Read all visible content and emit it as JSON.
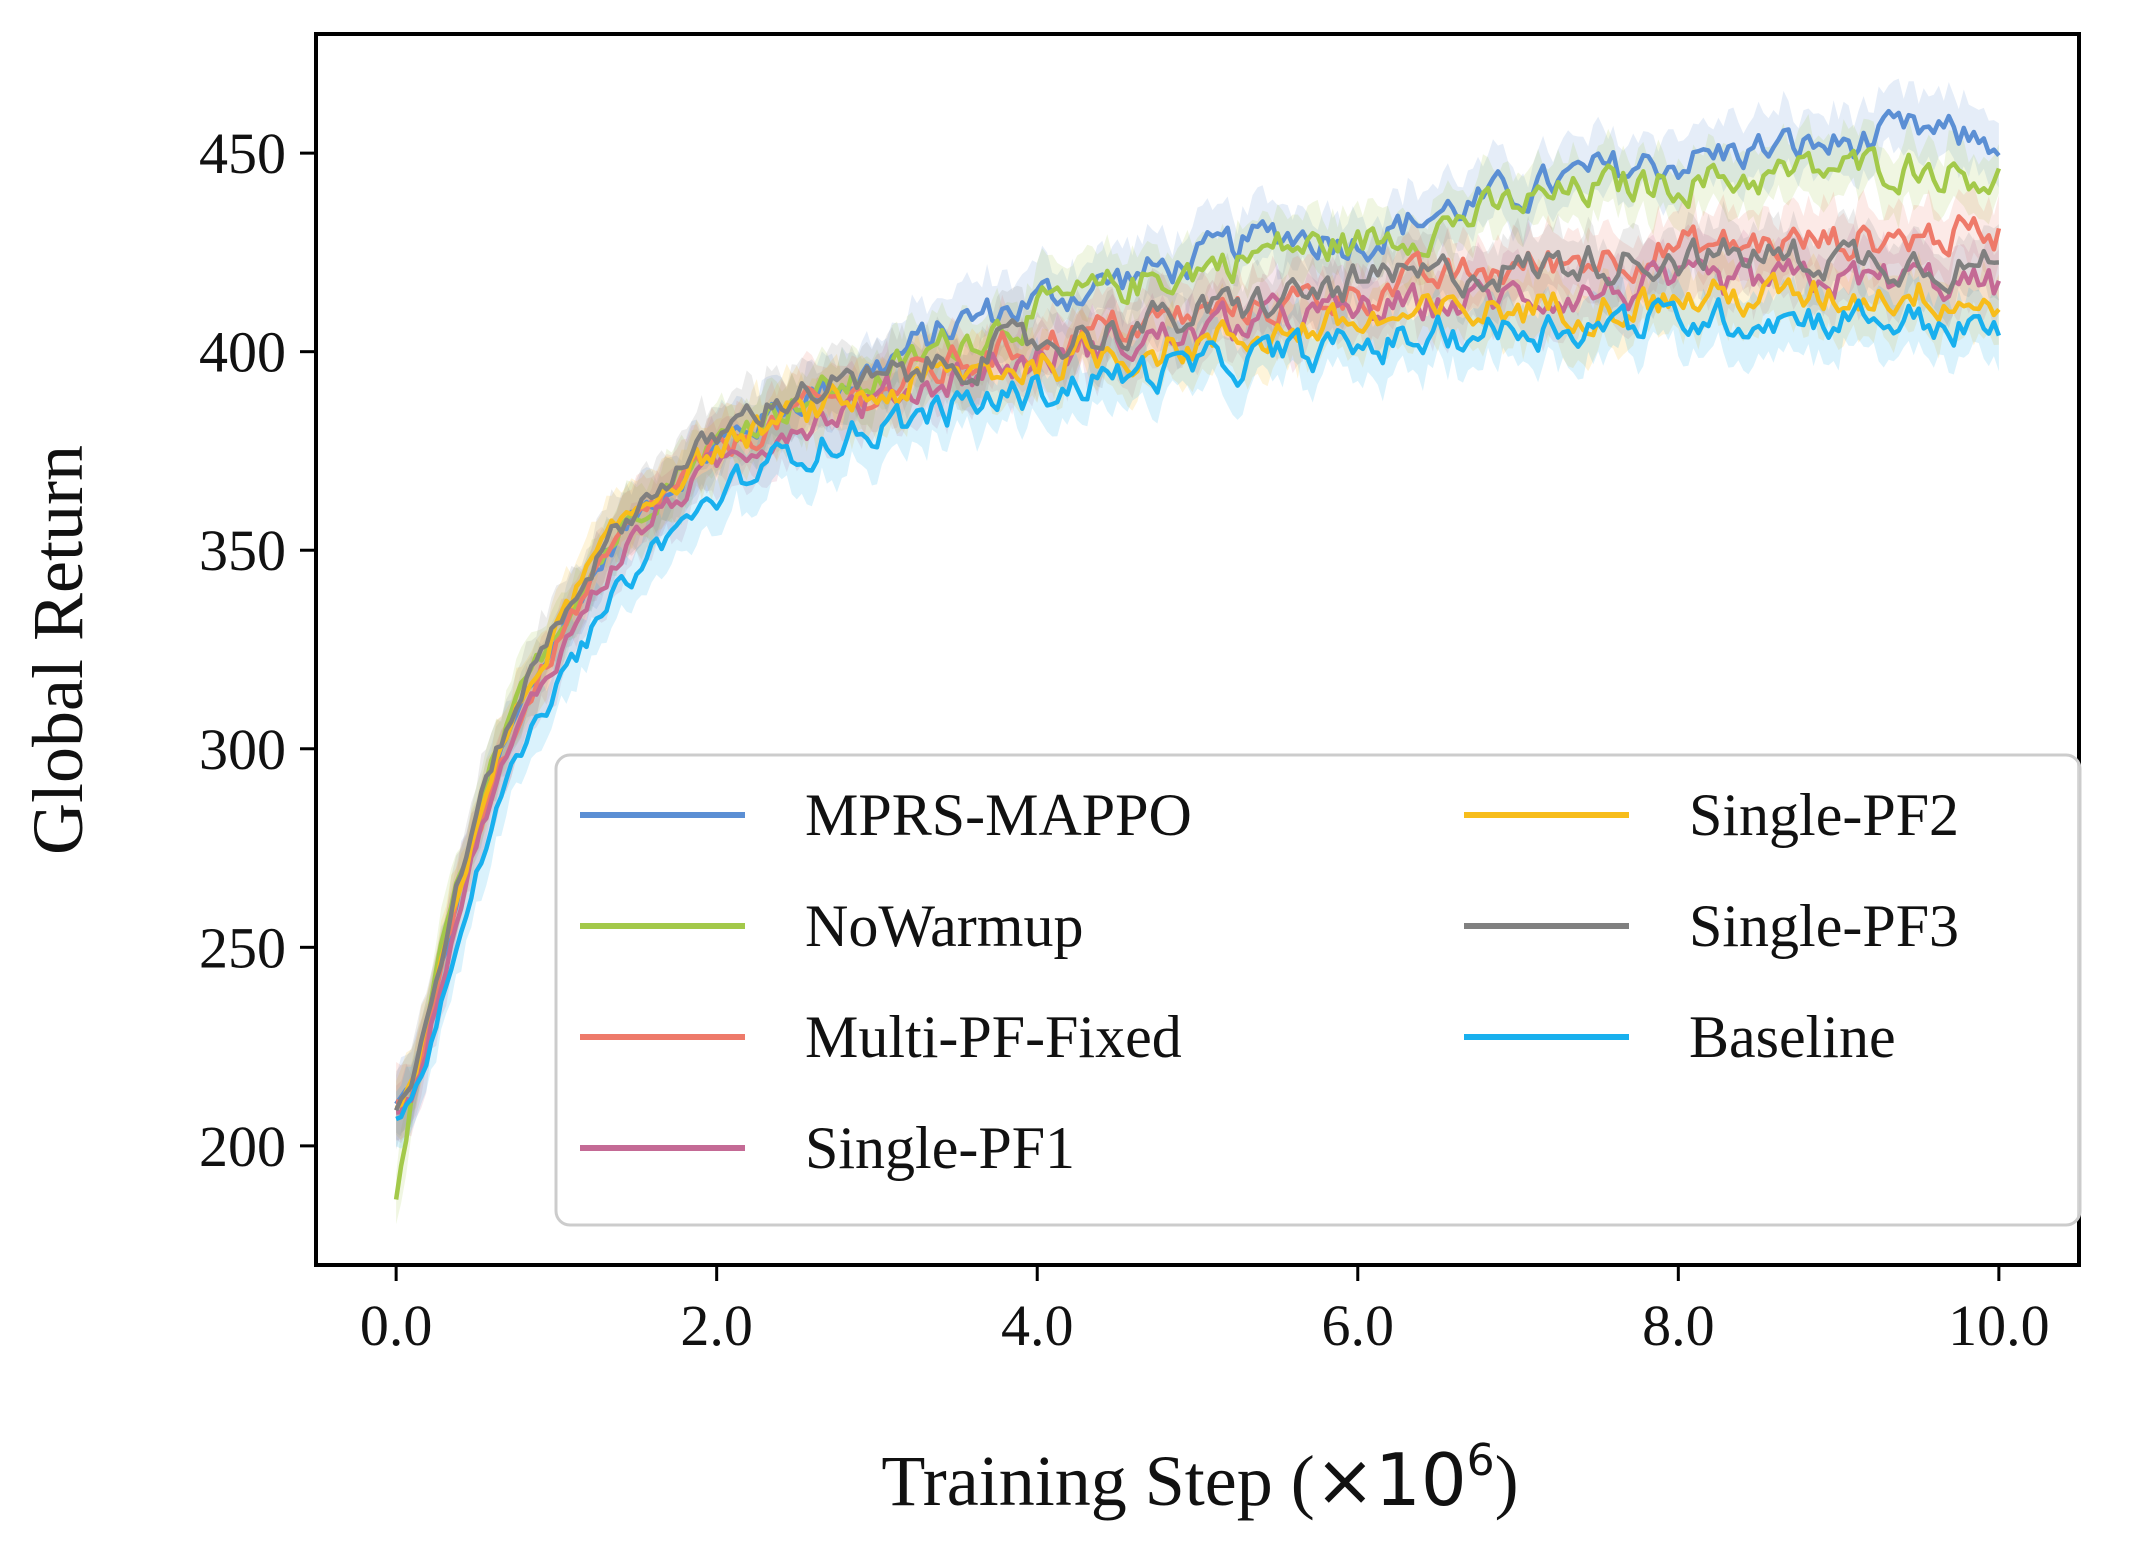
{
  "chart_data": {
    "type": "line",
    "title": "",
    "xlabel_main": "Training Step (",
    "xlabel_mult": "×10",
    "xlabel_exp": "6",
    "xlabel_close": ")",
    "xlabel": "Training Step (×10^6)",
    "ylabel": "Global Return",
    "xlim": [
      -0.5,
      10.5
    ],
    "ylim": [
      170,
      480
    ],
    "xticks": [
      0,
      2,
      4,
      6,
      8,
      10
    ],
    "xtick_labels": [
      "0.0",
      "2.0",
      "4.0",
      "6.0",
      "8.0",
      "10.0"
    ],
    "yticks": [
      200,
      250,
      300,
      350,
      400,
      450
    ],
    "ytick_labels": [
      "200",
      "250",
      "300",
      "350",
      "400",
      "450"
    ],
    "grid": false,
    "legend_position": "lower-right",
    "legend_columns": 2,
    "x": [
      0,
      0.1,
      0.2,
      0.3,
      0.4,
      0.5,
      0.6,
      0.8,
      1.0,
      1.2,
      1.4,
      1.6,
      1.8,
      2.0,
      2.2,
      2.5,
      3.0,
      3.5,
      4.0,
      4.5,
      5.0,
      5.5,
      6.0,
      6.5,
      7.0,
      7.5,
      8.0,
      8.5,
      9.0,
      9.5,
      10.0
    ],
    "series": [
      {
        "name": "MPRS-MAPPO",
        "color": "#5b8fd4",
        "values": [
          210,
          215,
          230,
          248,
          265,
          280,
          293,
          312,
          328,
          342,
          354,
          363,
          370,
          376,
          381,
          388,
          396,
          407,
          413,
          418,
          423,
          430,
          428,
          435,
          440,
          445,
          448,
          451,
          452,
          455,
          453
        ]
      },
      {
        "name": "NoWarmup",
        "color": "#a3c94a",
        "values": [
          185,
          212,
          232,
          252,
          268,
          282,
          295,
          315,
          330,
          344,
          355,
          364,
          371,
          377,
          382,
          388,
          393,
          403,
          410,
          416,
          421,
          426,
          427,
          432,
          437,
          441,
          443,
          444,
          446,
          447,
          444
        ]
      },
      {
        "name": "Multi-PF-Fixed",
        "color": "#ee7a6a",
        "values": [
          210,
          214,
          228,
          247,
          263,
          278,
          291,
          310,
          326,
          340,
          352,
          361,
          368,
          374,
          379,
          385,
          390,
          397,
          402,
          406,
          409,
          412,
          415,
          418,
          421,
          424,
          426,
          427,
          428,
          429,
          430
        ]
      },
      {
        "name": "Single-PF1",
        "color": "#c46a95",
        "values": [
          210,
          213,
          227,
          245,
          261,
          276,
          289,
          308,
          323,
          337,
          349,
          358,
          365,
          371,
          376,
          382,
          388,
          394,
          398,
          402,
          405,
          408,
          410,
          412,
          414,
          415,
          416,
          417,
          418,
          418,
          416
        ]
      },
      {
        "name": "Single-PF2",
        "color": "#f7bd1b",
        "values": [
          210,
          215,
          231,
          250,
          266,
          281,
          294,
          313,
          330,
          345,
          356,
          364,
          370,
          375,
          379,
          384,
          389,
          394,
          397,
          400,
          402,
          405,
          407,
          409,
          411,
          412,
          413,
          414,
          414,
          415,
          412
        ]
      },
      {
        "name": "Single-PF3",
        "color": "#808080",
        "values": [
          210,
          216,
          232,
          251,
          268,
          283,
          296,
          316,
          332,
          345,
          356,
          365,
          372,
          378,
          384,
          390,
          392,
          398,
          402,
          406,
          409,
          413,
          417,
          419,
          421,
          423,
          424,
          424,
          424,
          423,
          421
        ]
      },
      {
        "name": "Baseline",
        "color": "#18b0ee",
        "values": [
          208,
          211,
          224,
          240,
          255,
          270,
          282,
          300,
          315,
          328,
          340,
          350,
          357,
          363,
          369,
          375,
          381,
          386,
          390,
          394,
          396,
          399,
          401,
          404,
          406,
          407,
          408,
          409,
          409,
          408,
          404
        ]
      }
    ]
  }
}
